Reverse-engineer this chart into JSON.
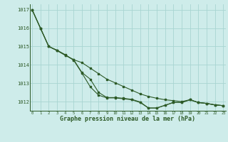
{
  "title": "Graphe pression niveau de la mer (hPa)",
  "bg_color": "#ceecea",
  "grid_color": "#a8d5d2",
  "line_color": "#2d5a27",
  "marker_color": "#2d5a27",
  "ylim": [
    1011.5,
    1017.3
  ],
  "xlim": [
    -0.3,
    23.3
  ],
  "yticks": [
    1012,
    1013,
    1014,
    1015,
    1016,
    1017
  ],
  "xticks": [
    0,
    1,
    2,
    3,
    4,
    5,
    6,
    7,
    8,
    9,
    10,
    11,
    12,
    13,
    14,
    15,
    16,
    17,
    18,
    19,
    20,
    21,
    22,
    23
  ],
  "series1": [
    1017.0,
    1016.0,
    1015.0,
    1014.8,
    1014.55,
    1014.25,
    1013.55,
    1012.8,
    1012.35,
    1012.2,
    1012.2,
    1012.15,
    1012.1,
    1011.95,
    1011.65,
    1011.65,
    1011.8,
    1011.95,
    1011.95,
    1012.1,
    1011.95,
    1011.9,
    1011.82,
    1011.78
  ],
  "series2": [
    1017.0,
    1016.0,
    1015.0,
    1014.78,
    1014.52,
    1014.28,
    1013.58,
    1013.22,
    1012.5,
    1012.22,
    1012.22,
    1012.18,
    1012.12,
    1011.98,
    1011.65,
    1011.65,
    1011.8,
    1011.95,
    1011.95,
    1012.1,
    1011.95,
    1011.9,
    1011.82,
    1011.78
  ],
  "series3": [
    1017.0,
    1016.0,
    1015.0,
    1014.78,
    1014.52,
    1014.28,
    1014.12,
    1013.82,
    1013.52,
    1013.22,
    1013.02,
    1012.82,
    1012.62,
    1012.42,
    1012.28,
    1012.18,
    1012.1,
    1012.05,
    1012.0,
    1012.1,
    1011.95,
    1011.9,
    1011.82,
    1011.78
  ],
  "figsize": [
    3.2,
    2.0
  ],
  "dpi": 100
}
